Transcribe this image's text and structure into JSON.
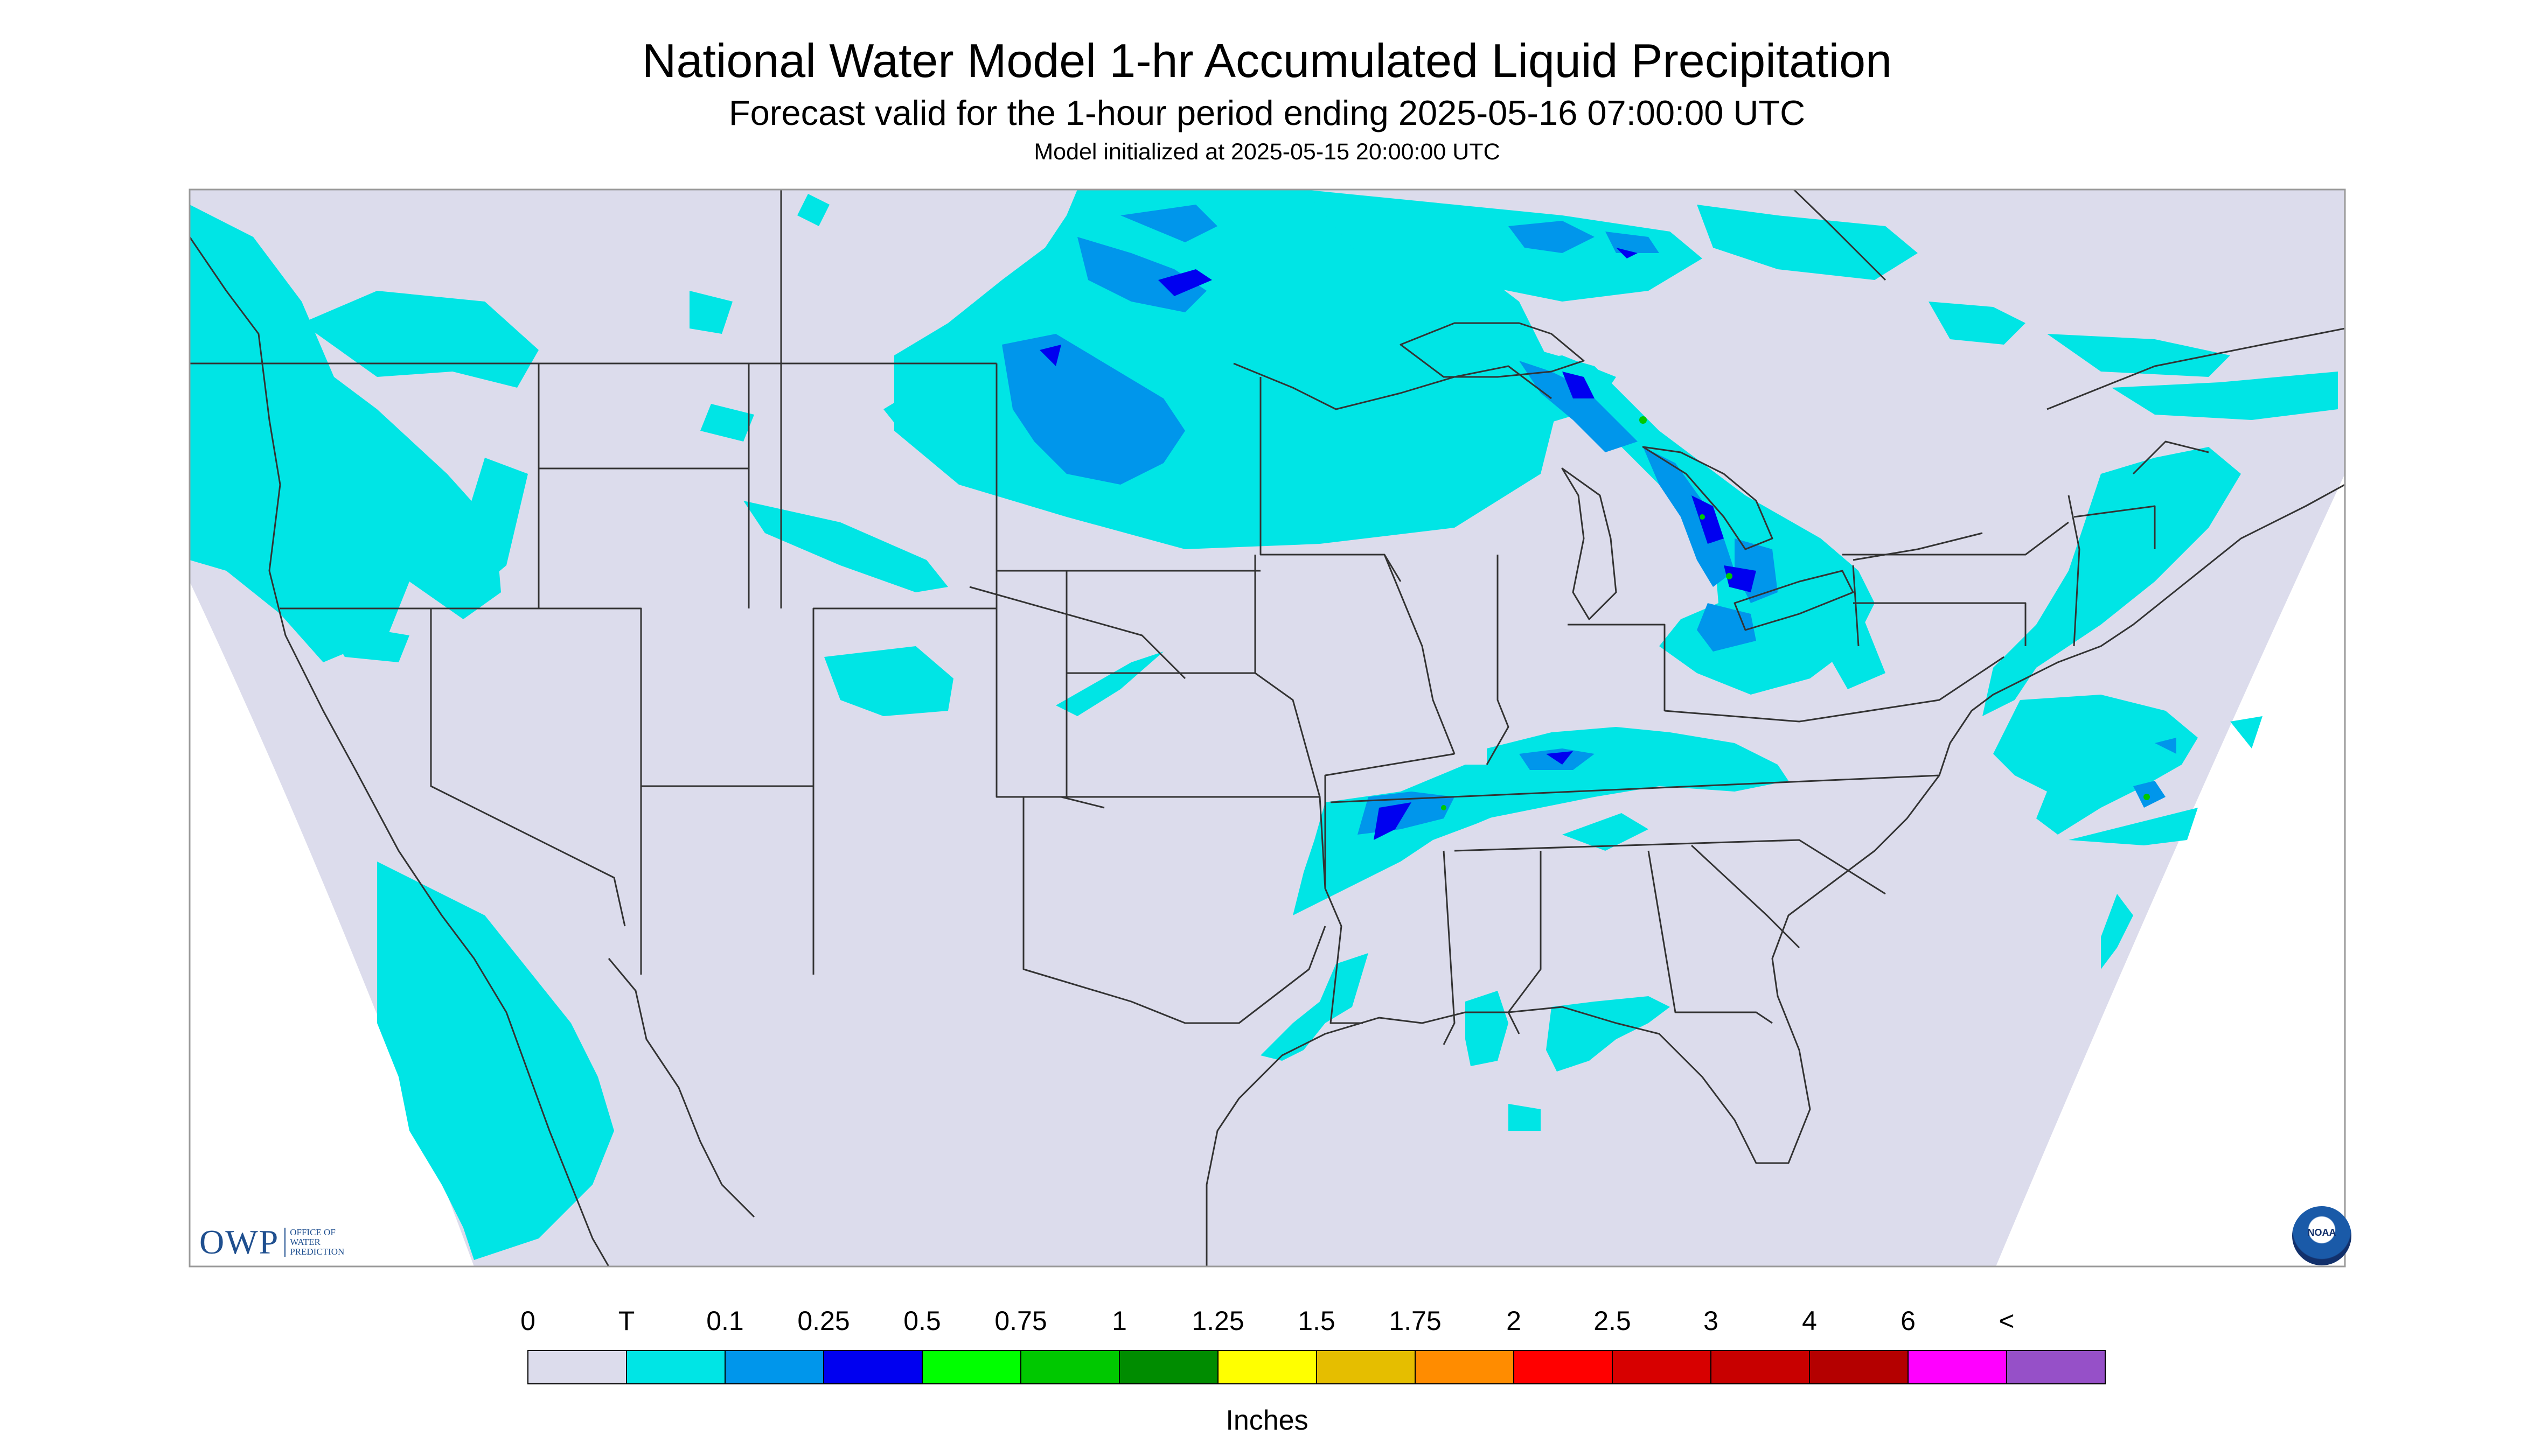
{
  "title": "National Water Model 1-hr Accumulated Liquid Precipitation",
  "subtitle": "Forecast valid for the 1-hour period ending 2025-05-16 07:00:00 UTC",
  "init_line": "Model initialized at 2025-05-15 20:00:00 UTC",
  "logos": {
    "owp_big": "OWP",
    "owp_small": "OFFICE OF WATER PREDICTION",
    "noaa": "NOAA"
  },
  "legend": {
    "units": "Inches",
    "labels": [
      "0",
      "T",
      "0.1",
      "0.25",
      "0.5",
      "0.75",
      "1",
      "1.25",
      "1.5",
      "1.75",
      "2",
      "2.5",
      "3",
      "4",
      "6",
      "<"
    ],
    "colors": [
      "#dcdcec",
      "#00e5e5",
      "#0096eb",
      "#0000f0",
      "#00ff00",
      "#00c800",
      "#008c00",
      "#ffff00",
      "#e5be00",
      "#ff8c00",
      "#ff0000",
      "#d70000",
      "#c80000",
      "#b40000",
      "#ff00ff",
      "#9650c8"
    ]
  },
  "map": {
    "background_color": "#dcdcec",
    "trace_color": "#00e5e5",
    "light_color": "#0096eb",
    "moderate_color": "#0000f0",
    "heavy_color": "#00c800",
    "line_color": "#333333"
  }
}
